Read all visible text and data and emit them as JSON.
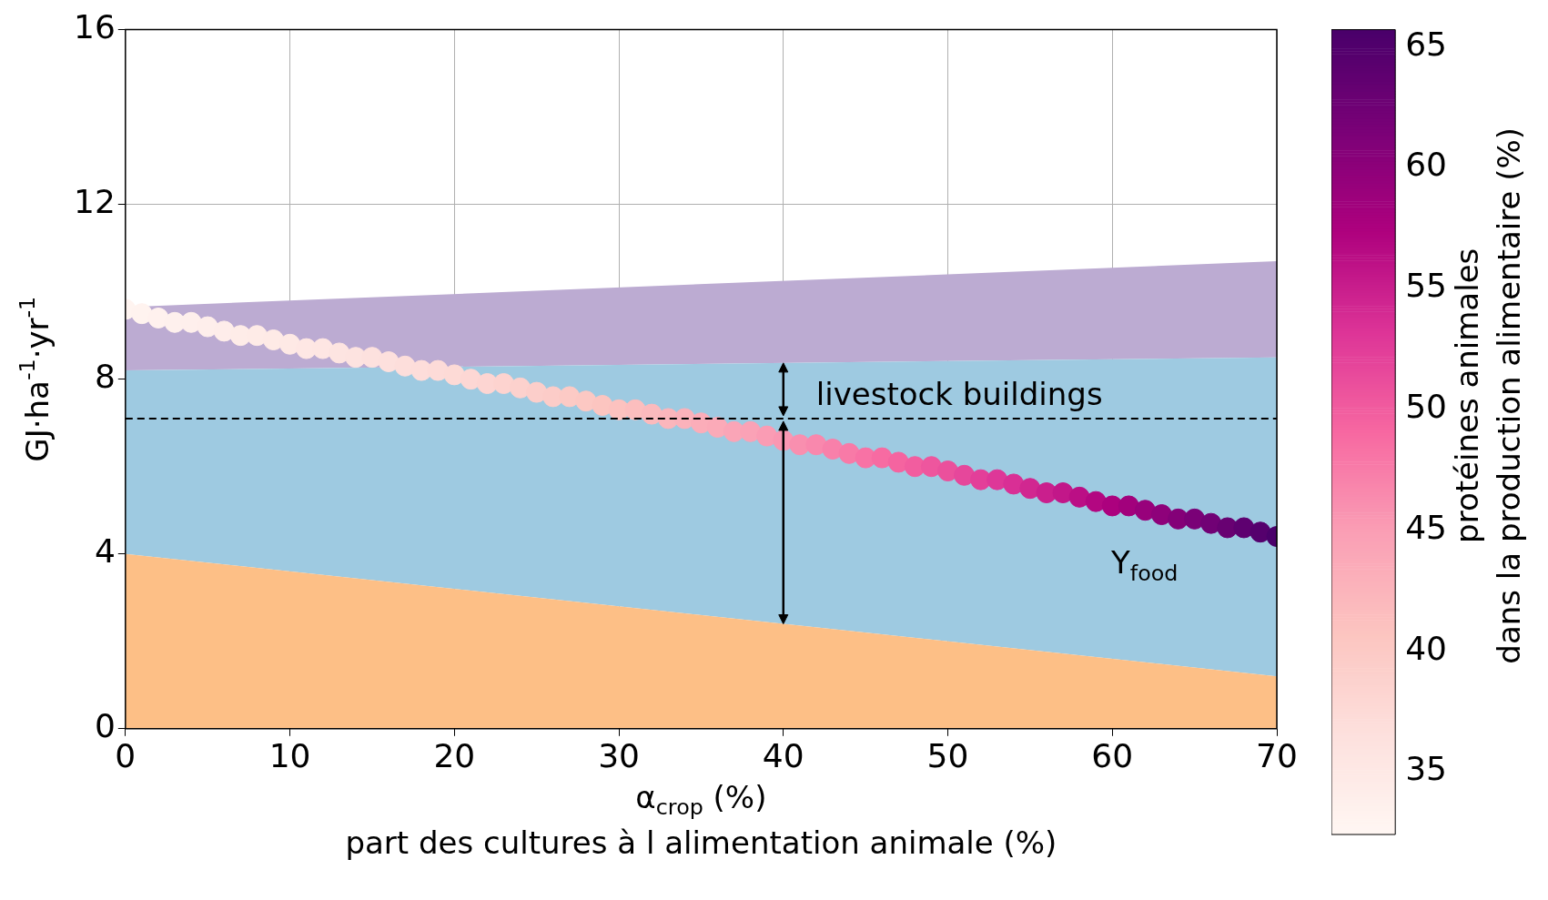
{
  "chart_data": {
    "type": "area",
    "stacked": true,
    "grid": true,
    "xlabel": "α$_{crop}$ (%)\npart des cultures à l alimentation animale (%)",
    "ylabel": "GJ·ha$^{-1}$·yr$^{-1}$",
    "clabel": "protéines animales\ndans la production alimentaire (%)",
    "xlim": [
      0,
      70
    ],
    "xticks": [
      0,
      10,
      20,
      30,
      40,
      50,
      60,
      70
    ],
    "ylim": [
      0,
      16
    ],
    "yticks": [
      0,
      4,
      8,
      12,
      16
    ],
    "clim": [
      32.4,
      65.7
    ],
    "cticks": [
      35,
      40,
      45,
      50,
      55,
      60,
      65
    ],
    "series": [
      {
        "color": "#fdbf86",
        "x": [
          0,
          70
        ],
        "values": [
          4.0,
          1.2
        ]
      },
      {
        "color": "#9ecae1",
        "x": [
          0,
          70
        ],
        "values": [
          4.2,
          7.3
        ]
      },
      {
        "color": "#bcabd2",
        "x": [
          0,
          70
        ],
        "values": [
          1.45,
          2.2
        ]
      },
      {
        "type": "scatter",
        "marker": "circle",
        "name": "Y$_{food}$",
        "x": [
          0,
          1,
          2,
          3,
          4,
          5,
          6,
          7,
          8,
          9,
          10,
          11,
          12,
          13,
          14,
          15,
          16,
          17,
          18,
          19,
          20,
          21,
          22,
          23,
          24,
          25,
          26,
          27,
          28,
          29,
          30,
          31,
          32,
          33,
          34,
          35,
          36,
          37,
          38,
          39,
          40,
          41,
          42,
          43,
          44,
          45,
          46,
          47,
          48,
          49,
          50,
          51,
          52,
          53,
          54,
          55,
          56,
          57,
          58,
          59,
          60,
          61,
          62,
          63,
          64,
          65,
          66,
          67,
          68,
          69,
          70
        ],
        "values": [
          9.6,
          9.5,
          9.4,
          9.3,
          9.3,
          9.2,
          9.1,
          9.0,
          9.0,
          8.9,
          8.8,
          8.7,
          8.7,
          8.6,
          8.5,
          8.5,
          8.4,
          8.3,
          8.2,
          8.2,
          8.1,
          8.0,
          7.9,
          7.9,
          7.8,
          7.7,
          7.6,
          7.6,
          7.5,
          7.4,
          7.3,
          7.3,
          7.2,
          7.1,
          7.1,
          7.0,
          6.9,
          6.8,
          6.8,
          6.7,
          6.6,
          6.5,
          6.5,
          6.4,
          6.3,
          6.2,
          6.2,
          6.1,
          6.0,
          6.0,
          5.9,
          5.8,
          5.7,
          5.7,
          5.6,
          5.5,
          5.4,
          5.4,
          5.3,
          5.2,
          5.1,
          5.1,
          5.0,
          4.9,
          4.8,
          4.8,
          4.7,
          4.6,
          4.6,
          4.5,
          4.4
        ],
        "colors": [
          "#fff4f0",
          "#fff3ef",
          "#fff1ee",
          "#fef0ed",
          "#feefec",
          "#feeeeb",
          "#feedea",
          "#feece8",
          "#feebe7",
          "#feeae6",
          "#fee9e5",
          "#fee7e4",
          "#fee6e3",
          "#fde4e1",
          "#fde3e0",
          "#fde1de",
          "#fde0dd",
          "#fddedb",
          "#fdddda",
          "#fddbd8",
          "#fddad6",
          "#fdd7d4",
          "#fdd5d2",
          "#fdd3cf",
          "#fcd1cd",
          "#fcceca",
          "#fcccc8",
          "#fccac5",
          "#fcc8c3",
          "#fcc5c0",
          "#fcc2bf",
          "#fcbebe",
          "#fbbabd",
          "#fbb6bc",
          "#fbb2bb",
          "#fbadb9",
          "#fbaab8",
          "#faa5b7",
          "#faa2b6",
          "#fa9cb4",
          "#fa97b2",
          "#f98faf",
          "#f988ad",
          "#f880aa",
          "#f87aa7",
          "#f872a5",
          "#f76ba2",
          "#f564a0",
          "#f25d9f",
          "#ee569e",
          "#eb509c",
          "#e6479b",
          "#e33f99",
          "#de3798",
          "#d92f95",
          "#d12790",
          "#ca1f8d",
          "#c21789",
          "#bb0f85",
          "#b30781",
          "#ac017e",
          "#a2017c",
          "#98017b",
          "#8e017a",
          "#840178",
          "#7a0177",
          "#710175",
          "#680172",
          "#5e0070",
          "#55006d",
          "#4b006b"
        ],
        "cvalues": [
          33,
          33.2,
          33.4,
          33.6,
          33.8,
          34,
          34.2,
          34.4,
          34.6,
          34.8,
          35,
          35.3,
          35.5,
          35.8,
          36,
          36.3,
          36.5,
          36.8,
          37,
          37.3,
          37.5,
          37.9,
          38.2,
          38.6,
          38.9,
          39.3,
          39.6,
          40,
          40.3,
          40.7,
          41,
          41.5,
          41.9,
          42.4,
          42.8,
          43.3,
          43.7,
          44.2,
          44.6,
          45.1,
          45.5,
          46.1,
          46.6,
          47.2,
          47.7,
          48.3,
          48.8,
          49.4,
          49.9,
          50.5,
          51,
          51.7,
          52.3,
          53,
          53.6,
          54.3,
          54.9,
          55.6,
          56.2,
          56.9,
          57.5,
          58.3,
          59.1,
          59.9,
          60.7,
          61.5,
          62.3,
          63.1,
          63.9,
          64.7,
          65.5
        ]
      }
    ],
    "ref_lines": [
      {
        "axis": "y",
        "value": 7.1,
        "color": "#000000",
        "line_style": "dashed"
      }
    ],
    "annotations": [
      "livestock buildings"
    ]
  }
}
